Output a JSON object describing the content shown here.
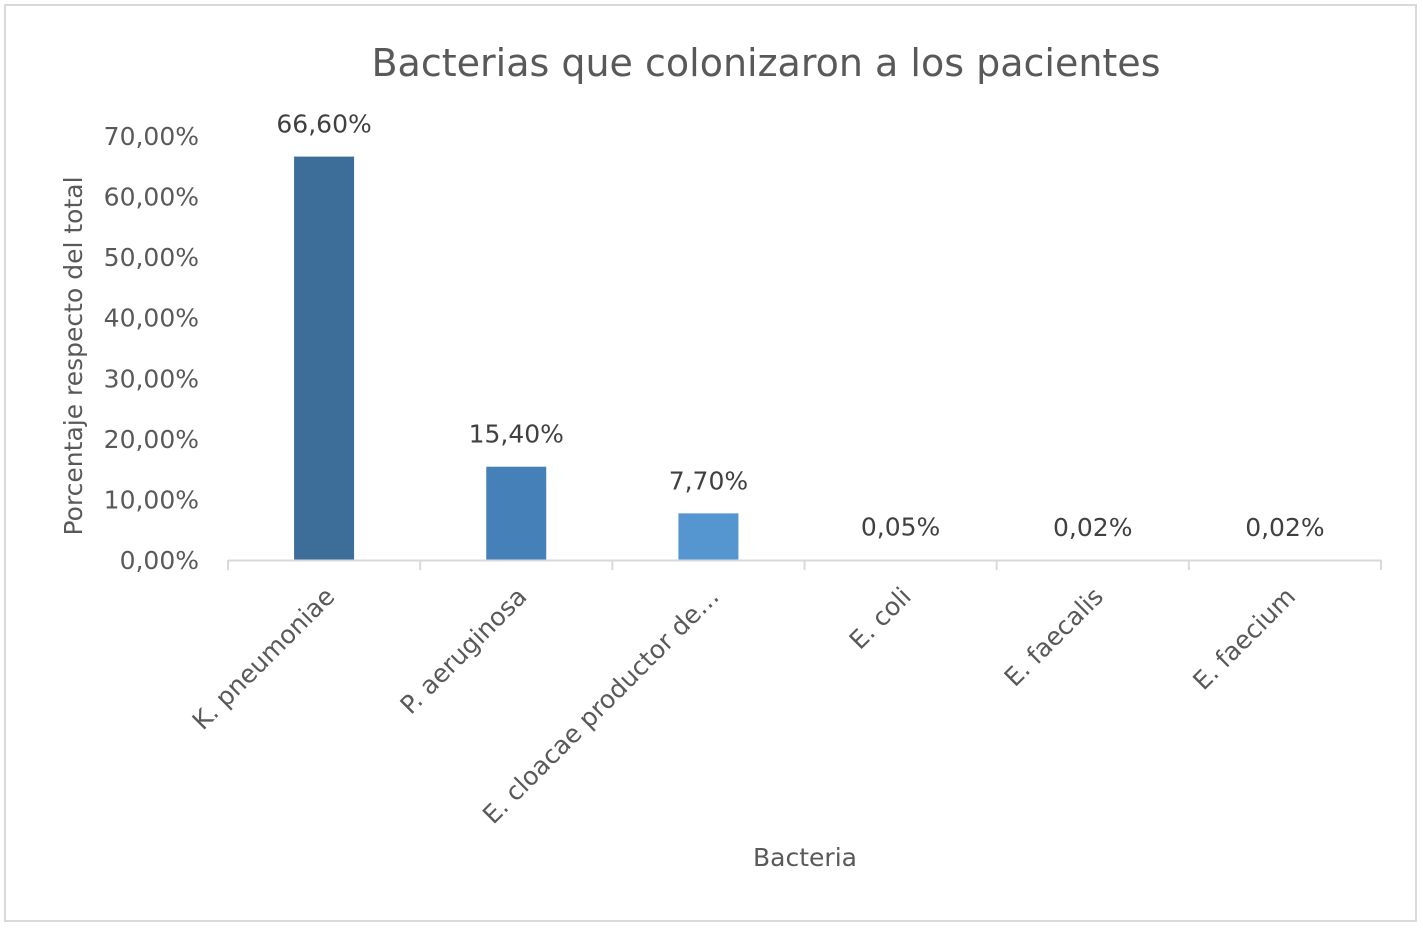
{
  "chart_data": {
    "type": "bar",
    "title": "Bacterias que colonizaron a los pacientes",
    "xlabel": "Bacteria",
    "ylabel": "Porcentaje respecto del total",
    "categories": [
      "K. pneumoniae",
      "P. aeruginosa",
      "E. cloacae productor de…",
      "E. coli",
      "E. faecalis",
      "E. faecium"
    ],
    "values": [
      66.6,
      15.4,
      7.7,
      0.05,
      0.02,
      0.02
    ],
    "data_labels": [
      "66,60%",
      "15,40%",
      "7,70%",
      "0,05%",
      "0,02%",
      "0,02%"
    ],
    "yticks": [
      "0,00%",
      "10,00%",
      "20,00%",
      "30,00%",
      "40,00%",
      "50,00%",
      "60,00%",
      "70,00%"
    ],
    "ylim": [
      0,
      70
    ],
    "grid": false,
    "legend": "none",
    "colors": [
      "#3d6d99",
      "#4580b8",
      "#5596d0",
      "#5b9bd5",
      "#5b9bd5",
      "#5b9bd5"
    ]
  }
}
